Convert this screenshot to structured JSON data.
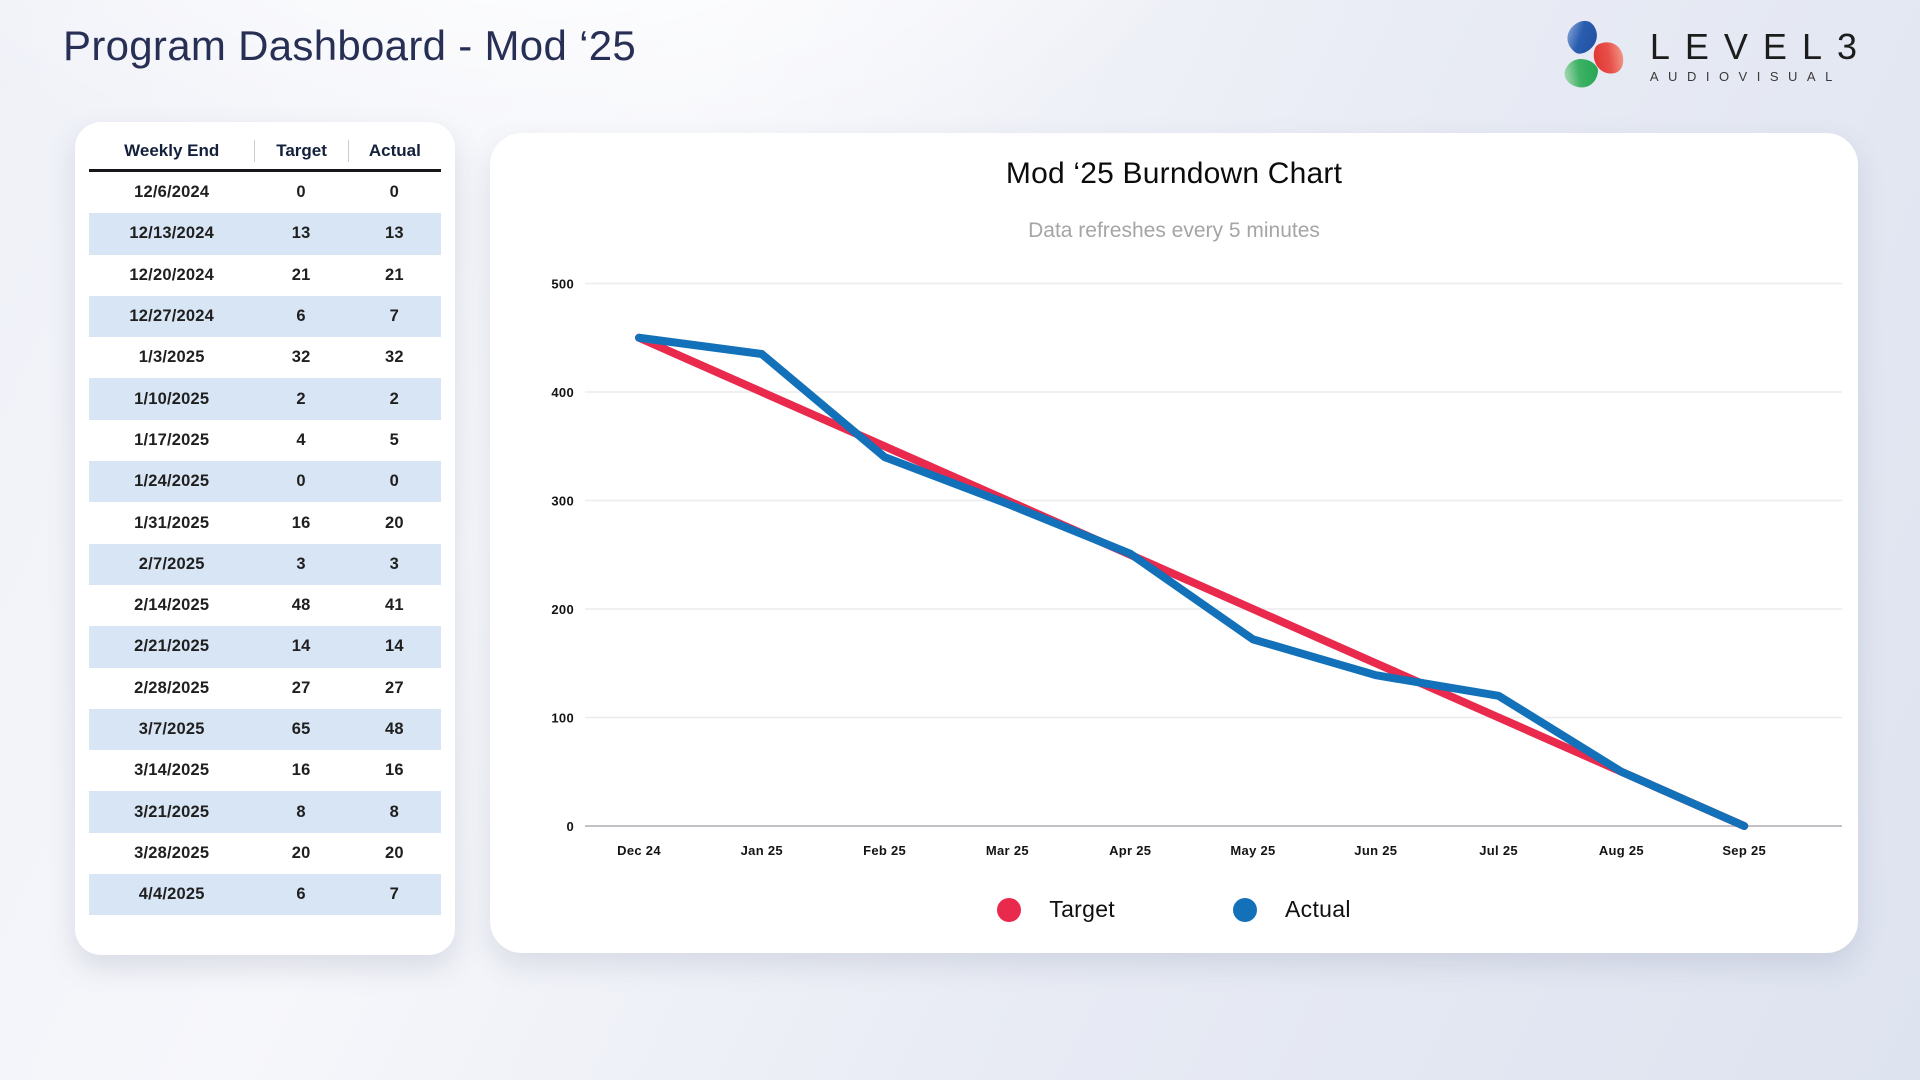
{
  "header": {
    "title": "Program Dashboard - Mod ‘25",
    "logo": {
      "name": "LEVEL3",
      "tagline": "AUDIOVISUAL"
    }
  },
  "table": {
    "columns": [
      "Weekly End",
      "Target",
      "Actual"
    ],
    "rows": [
      [
        "12/6/2024",
        "0",
        "0"
      ],
      [
        "12/13/2024",
        "13",
        "13"
      ],
      [
        "12/20/2024",
        "21",
        "21"
      ],
      [
        "12/27/2024",
        "6",
        "7"
      ],
      [
        "1/3/2025",
        "32",
        "32"
      ],
      [
        "1/10/2025",
        "2",
        "2"
      ],
      [
        "1/17/2025",
        "4",
        "5"
      ],
      [
        "1/24/2025",
        "0",
        "0"
      ],
      [
        "1/31/2025",
        "16",
        "20"
      ],
      [
        "2/7/2025",
        "3",
        "3"
      ],
      [
        "2/14/2025",
        "48",
        "41"
      ],
      [
        "2/21/2025",
        "14",
        "14"
      ],
      [
        "2/28/2025",
        "27",
        "27"
      ],
      [
        "3/7/2025",
        "65",
        "48"
      ],
      [
        "3/14/2025",
        "16",
        "16"
      ],
      [
        "3/21/2025",
        "8",
        "8"
      ],
      [
        "3/28/2025",
        "20",
        "20"
      ],
      [
        "4/4/2025",
        "6",
        "7"
      ]
    ],
    "stripe_color": "#d8e5f4"
  },
  "chart": {
    "title": "Mod ‘25 Burndown Chart",
    "subtitle": "Data refreshes every 5 minutes",
    "legend": [
      {
        "label": "Target",
        "color": "#e92a4d"
      },
      {
        "label": "Actual",
        "color": "#1271b9"
      }
    ]
  },
  "chart_data": {
    "type": "line",
    "title": "Mod ‘25 Burndown Chart",
    "subtitle": "Data refreshes every 5 minutes",
    "x_categories": [
      "Dec 24",
      "Jan 25",
      "Feb 25",
      "Mar 25",
      "Apr 25",
      "May 25",
      "Jun 25",
      "Jul 25",
      "Aug 25",
      "Sep 25"
    ],
    "series": [
      {
        "name": "Target",
        "color": "#e92a4d",
        "values": [
          450,
          400,
          350,
          300,
          250,
          200,
          150,
          100,
          50,
          0
        ]
      },
      {
        "name": "Actual",
        "color": "#1271b9",
        "values": [
          450,
          435,
          340,
          297,
          251,
          172,
          139,
          120,
          50,
          0
        ]
      }
    ],
    "ylim": [
      0,
      500
    ],
    "yticks": [
      0,
      100,
      200,
      300,
      400,
      500
    ],
    "grid": true,
    "legend_position": "bottom"
  }
}
